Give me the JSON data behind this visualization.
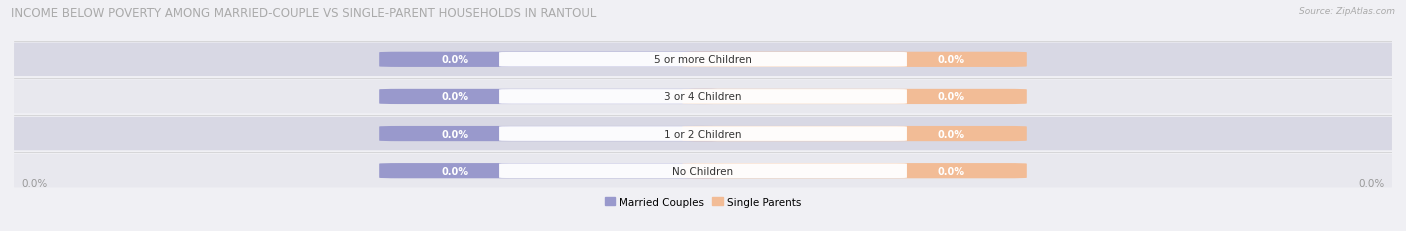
{
  "title": "INCOME BELOW POVERTY AMONG MARRIED-COUPLE VS SINGLE-PARENT HOUSEHOLDS IN RANTOUL",
  "source": "Source: ZipAtlas.com",
  "categories": [
    "No Children",
    "1 or 2 Children",
    "3 or 4 Children",
    "5 or more Children"
  ],
  "married_values": [
    "0.0%",
    "0.0%",
    "0.0%",
    "0.0%"
  ],
  "single_values": [
    "0.0%",
    "0.0%",
    "0.0%",
    "0.0%"
  ],
  "married_color": "#9999cc",
  "single_color": "#f2bc96",
  "background_color": "#f0f0f4",
  "row_even_color": "#e8e8ee",
  "row_odd_color": "#d8d8e4",
  "title_color": "#aaaaaa",
  "source_color": "#aaaaaa",
  "axis_label_color": "#999999",
  "cat_label_color": "#333333",
  "val_label_color": "#ffffff",
  "title_fontsize": 8.5,
  "source_fontsize": 6.5,
  "cat_fontsize": 7.5,
  "val_fontsize": 7.0,
  "axis_fontsize": 7.5,
  "legend_fontsize": 7.5,
  "xlim_left": "0.0%",
  "xlim_right": "0.0%",
  "legend_labels": [
    "Married Couples",
    "Single Parents"
  ]
}
